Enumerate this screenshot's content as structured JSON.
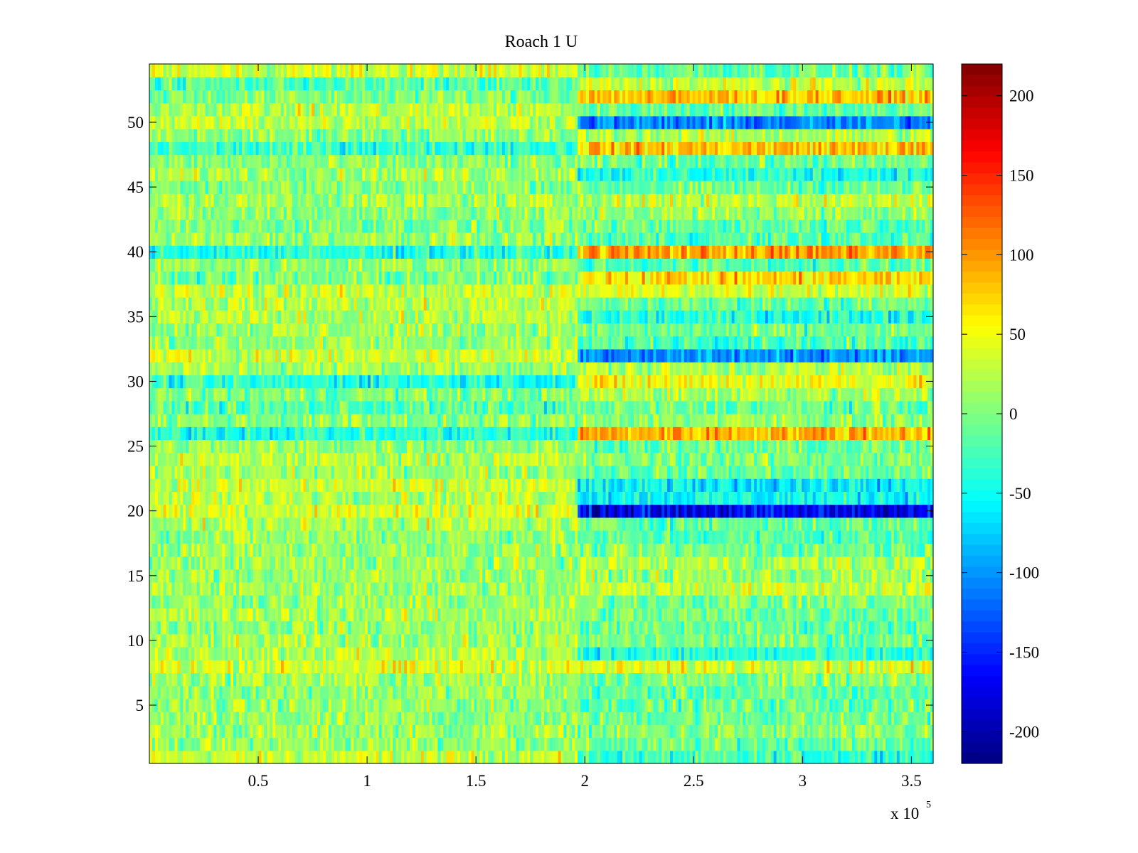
{
  "chart_data": {
    "type": "heatmap",
    "title": "Roach 1 U",
    "xlabel": "",
    "ylabel": "",
    "colormap": "jet",
    "x_multiplier": {
      "base": "x 10",
      "exponent": "5"
    },
    "xlim": [
      0,
      3.6
    ],
    "ylim": [
      0.5,
      54.5
    ],
    "x_ticks": [
      {
        "value": 0.5,
        "label": "0.5"
      },
      {
        "value": 1.0,
        "label": "1"
      },
      {
        "value": 1.5,
        "label": "1.5"
      },
      {
        "value": 2.0,
        "label": "2"
      },
      {
        "value": 2.5,
        "label": "2.5"
      },
      {
        "value": 3.0,
        "label": "3"
      },
      {
        "value": 3.5,
        "label": "3.5"
      }
    ],
    "y_ticks": [
      {
        "value": 5,
        "label": "5"
      },
      {
        "value": 10,
        "label": "10"
      },
      {
        "value": 15,
        "label": "15"
      },
      {
        "value": 20,
        "label": "20"
      },
      {
        "value": 25,
        "label": "25"
      },
      {
        "value": 30,
        "label": "30"
      },
      {
        "value": 35,
        "label": "35"
      },
      {
        "value": 40,
        "label": "40"
      },
      {
        "value": 45,
        "label": "45"
      },
      {
        "value": 50,
        "label": "50"
      }
    ],
    "colorbar": {
      "range": [
        -220,
        220
      ],
      "ticks": [
        {
          "value": 200,
          "label": "200"
        },
        {
          "value": 150,
          "label": "150"
        },
        {
          "value": 100,
          "label": "100"
        },
        {
          "value": 50,
          "label": "50"
        },
        {
          "value": 0,
          "label": "0"
        },
        {
          "value": -50,
          "label": "-50"
        },
        {
          "value": -100,
          "label": "-100"
        },
        {
          "value": -150,
          "label": "-150"
        },
        {
          "value": -200,
          "label": "-200"
        }
      ]
    },
    "rows": 54,
    "change_point_x": 1.97,
    "row_means_before": [
      30,
      10,
      12,
      5,
      8,
      10,
      15,
      40,
      25,
      15,
      10,
      18,
      10,
      15,
      12,
      10,
      12,
      10,
      20,
      40,
      25,
      30,
      15,
      25,
      10,
      -40,
      5,
      -20,
      0,
      -40,
      15,
      35,
      10,
      15,
      20,
      25,
      30,
      -5,
      10,
      -40,
      10,
      0,
      5,
      15,
      5,
      20,
      0,
      -30,
      5,
      30,
      25,
      0,
      -20,
      35
    ],
    "row_means_after": [
      -30,
      -10,
      0,
      -5,
      -10,
      -15,
      0,
      40,
      -40,
      -5,
      -10,
      -5,
      0,
      30,
      10,
      20,
      -5,
      -20,
      -10,
      -170,
      -50,
      -60,
      -10,
      0,
      -10,
      90,
      10,
      -10,
      20,
      50,
      20,
      -100,
      -20,
      -10,
      -40,
      -10,
      40,
      70,
      -20,
      95,
      -20,
      -10,
      10,
      30,
      -10,
      -40,
      -10,
      80,
      20,
      -110,
      -10,
      80,
      30,
      -10
    ]
  }
}
